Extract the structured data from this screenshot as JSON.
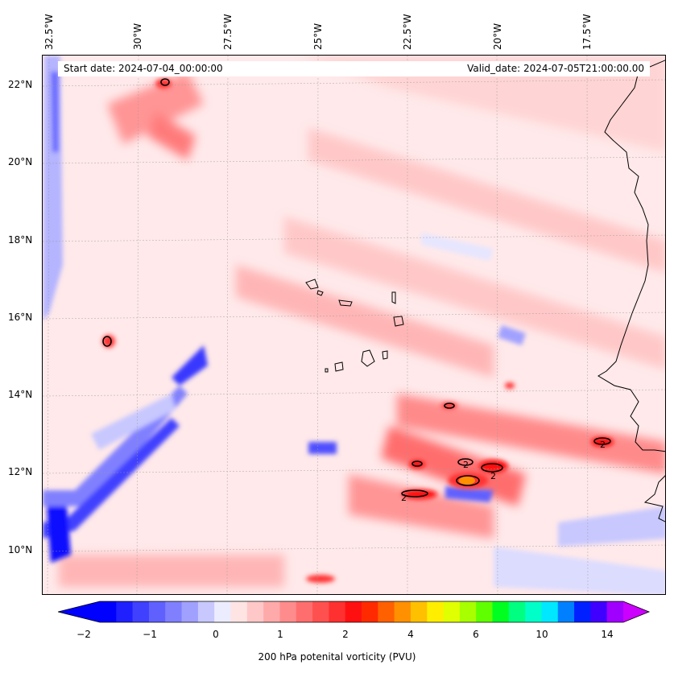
{
  "map": {
    "start_date": "Start date: 2024-07-04_00:00:00",
    "valid_date": "Valid_date: 2024-07-05T21:00:00.00",
    "lon_labels": [
      "32.5°W",
      "30°W",
      "27.5°W",
      "25°W",
      "22.5°W",
      "20°W",
      "17.5°W"
    ],
    "lat_labels": [
      "22°N",
      "20°N",
      "18°N",
      "16°N",
      "14°N",
      "12°N",
      "10°N"
    ],
    "contour_label": "2",
    "field": "200 hPa potential vorticity",
    "colors": {
      "strong_neg": "#0000ff",
      "neg": "#8080ff",
      "weak_neg": "#dcdcff",
      "near_zero": "#ffe9ea",
      "weak_pos": "#ffc4c4",
      "pos": "#ff8080",
      "strong_pos": "#ff3030",
      "high": "#ff0000"
    }
  },
  "colorbar": {
    "label": "200 hPa potenital vorticity (PVU)",
    "ticks": [
      "−2",
      "−1",
      "0",
      "1",
      "2",
      "4",
      "6",
      "10",
      "14"
    ],
    "colors": [
      "#0000ff",
      "#2020ff",
      "#4040ff",
      "#6060ff",
      "#8080ff",
      "#a0a0ff",
      "#c8c8ff",
      "#ececff",
      "#ffe4e4",
      "#ffc8c8",
      "#ffaaaa",
      "#ff8c8c",
      "#ff6e6e",
      "#ff5050",
      "#ff3030",
      "#ff1010",
      "#ff2a00",
      "#ff6000",
      "#ff9000",
      "#ffc000",
      "#ffee00",
      "#e0ff00",
      "#a8ff00",
      "#60ff00",
      "#00ff20",
      "#00ff80",
      "#00ffc8",
      "#00e8ff",
      "#0080ff",
      "#0020ff",
      "#4000ff",
      "#a000ff"
    ]
  }
}
